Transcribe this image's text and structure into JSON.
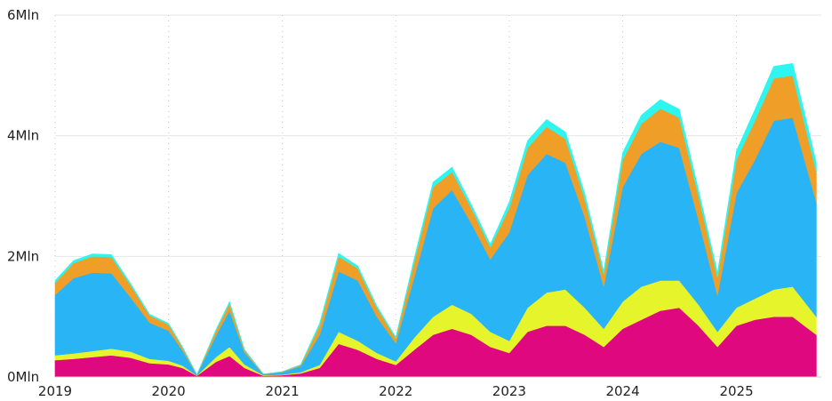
{
  "chart_data": {
    "type": "area",
    "stacked": true,
    "title": "",
    "xlabel": "",
    "ylabel": "",
    "y_unit_suffix": "Mln",
    "ylim": [
      0,
      6000000
    ],
    "yticks": [
      {
        "value": 0,
        "label": "0Mln"
      },
      {
        "value": 2000000,
        "label": "2Mln"
      },
      {
        "value": 4000000,
        "label": "4Mln"
      },
      {
        "value": 6000000,
        "label": "6Mln"
      }
    ],
    "xlim": [
      "2019-01-01",
      "2025-10-01"
    ],
    "xticks": [
      {
        "value": "2019-01-01",
        "label": "2019"
      },
      {
        "value": "2020-01-01",
        "label": "2020"
      },
      {
        "value": "2021-01-01",
        "label": "2021"
      },
      {
        "value": "2022-01-01",
        "label": "2022"
      },
      {
        "value": "2023-01-01",
        "label": "2023"
      },
      {
        "value": "2024-01-01",
        "label": "2024"
      },
      {
        "value": "2025-01-01",
        "label": "2025"
      }
    ],
    "grid": {
      "horizontal": true,
      "vertical": true
    },
    "legend": "none",
    "colors": [
      "#e0087e",
      "#e6f52b",
      "#29b5f5",
      "#ef9f27",
      "#2ef5ef"
    ],
    "x": [
      "2019-01-01",
      "2019-03-01",
      "2019-05-01",
      "2019-07-01",
      "2019-09-01",
      "2019-11-01",
      "2020-01-01",
      "2020-02-15",
      "2020-04-01",
      "2020-06-01",
      "2020-07-15",
      "2020-09-01",
      "2020-11-01",
      "2021-01-01",
      "2021-03-01",
      "2021-05-01",
      "2021-07-01",
      "2021-09-01",
      "2021-11-01",
      "2022-01-01",
      "2022-03-01",
      "2022-05-01",
      "2022-07-01",
      "2022-09-01",
      "2022-11-01",
      "2023-01-01",
      "2023-03-01",
      "2023-05-01",
      "2023-07-01",
      "2023-09-01",
      "2023-11-01",
      "2024-01-01",
      "2024-03-01",
      "2024-05-01",
      "2024-07-01",
      "2024-09-01",
      "2024-11-01",
      "2025-01-01",
      "2025-03-01",
      "2025-05-01",
      "2025-07-01",
      "2025-09-15"
    ],
    "series": [
      {
        "values": [
          280000,
          300000,
          330000,
          360000,
          320000,
          230000,
          210000,
          150000,
          20000,
          250000,
          350000,
          150000,
          20000,
          30000,
          60000,
          150000,
          550000,
          450000,
          300000,
          200000,
          450000,
          700000,
          800000,
          700000,
          500000,
          400000,
          750000,
          850000,
          850000,
          700000,
          500000,
          800000,
          950000,
          1100000,
          1150000,
          850000,
          500000,
          850000,
          950000,
          1000000,
          1000000,
          700000
        ]
      },
      {
        "values": [
          80000,
          90000,
          100000,
          110000,
          100000,
          70000,
          60000,
          40000,
          5000,
          80000,
          150000,
          60000,
          10000,
          10000,
          20000,
          50000,
          200000,
          150000,
          100000,
          60000,
          200000,
          300000,
          400000,
          350000,
          250000,
          200000,
          400000,
          550000,
          600000,
          450000,
          300000,
          450000,
          550000,
          500000,
          450000,
          350000,
          250000,
          300000,
          350000,
          450000,
          500000,
          300000
        ]
      },
      {
        "values": [
          1000000,
          1250000,
          1300000,
          1250000,
          900000,
          600000,
          500000,
          250000,
          10000,
          350000,
          600000,
          200000,
          15000,
          40000,
          100000,
          500000,
          1000000,
          1000000,
          600000,
          300000,
          1000000,
          1800000,
          1900000,
          1500000,
          1200000,
          1800000,
          2200000,
          2300000,
          2100000,
          1500000,
          700000,
          1900000,
          2200000,
          2300000,
          2200000,
          1400000,
          600000,
          1900000,
          2300000,
          2800000,
          2800000,
          1900000
        ]
      },
      {
        "values": [
          200000,
          250000,
          270000,
          270000,
          200000,
          120000,
          100000,
          50000,
          3000,
          80000,
          120000,
          40000,
          3000,
          8000,
          20000,
          150000,
          250000,
          200000,
          150000,
          80000,
          250000,
          350000,
          300000,
          250000,
          200000,
          400000,
          450000,
          450000,
          400000,
          300000,
          200000,
          450000,
          500000,
          550000,
          500000,
          400000,
          300000,
          550000,
          650000,
          700000,
          700000,
          500000
        ]
      },
      {
        "values": [
          40000,
          40000,
          40000,
          40000,
          30000,
          20000,
          20000,
          10000,
          1000,
          20000,
          30000,
          10000,
          1000,
          2000,
          5000,
          40000,
          50000,
          40000,
          30000,
          20000,
          60000,
          80000,
          80000,
          60000,
          50000,
          100000,
          120000,
          120000,
          110000,
          90000,
          60000,
          120000,
          140000,
          150000,
          140000,
          100000,
          80000,
          150000,
          180000,
          200000,
          200000,
          150000
        ]
      }
    ]
  }
}
